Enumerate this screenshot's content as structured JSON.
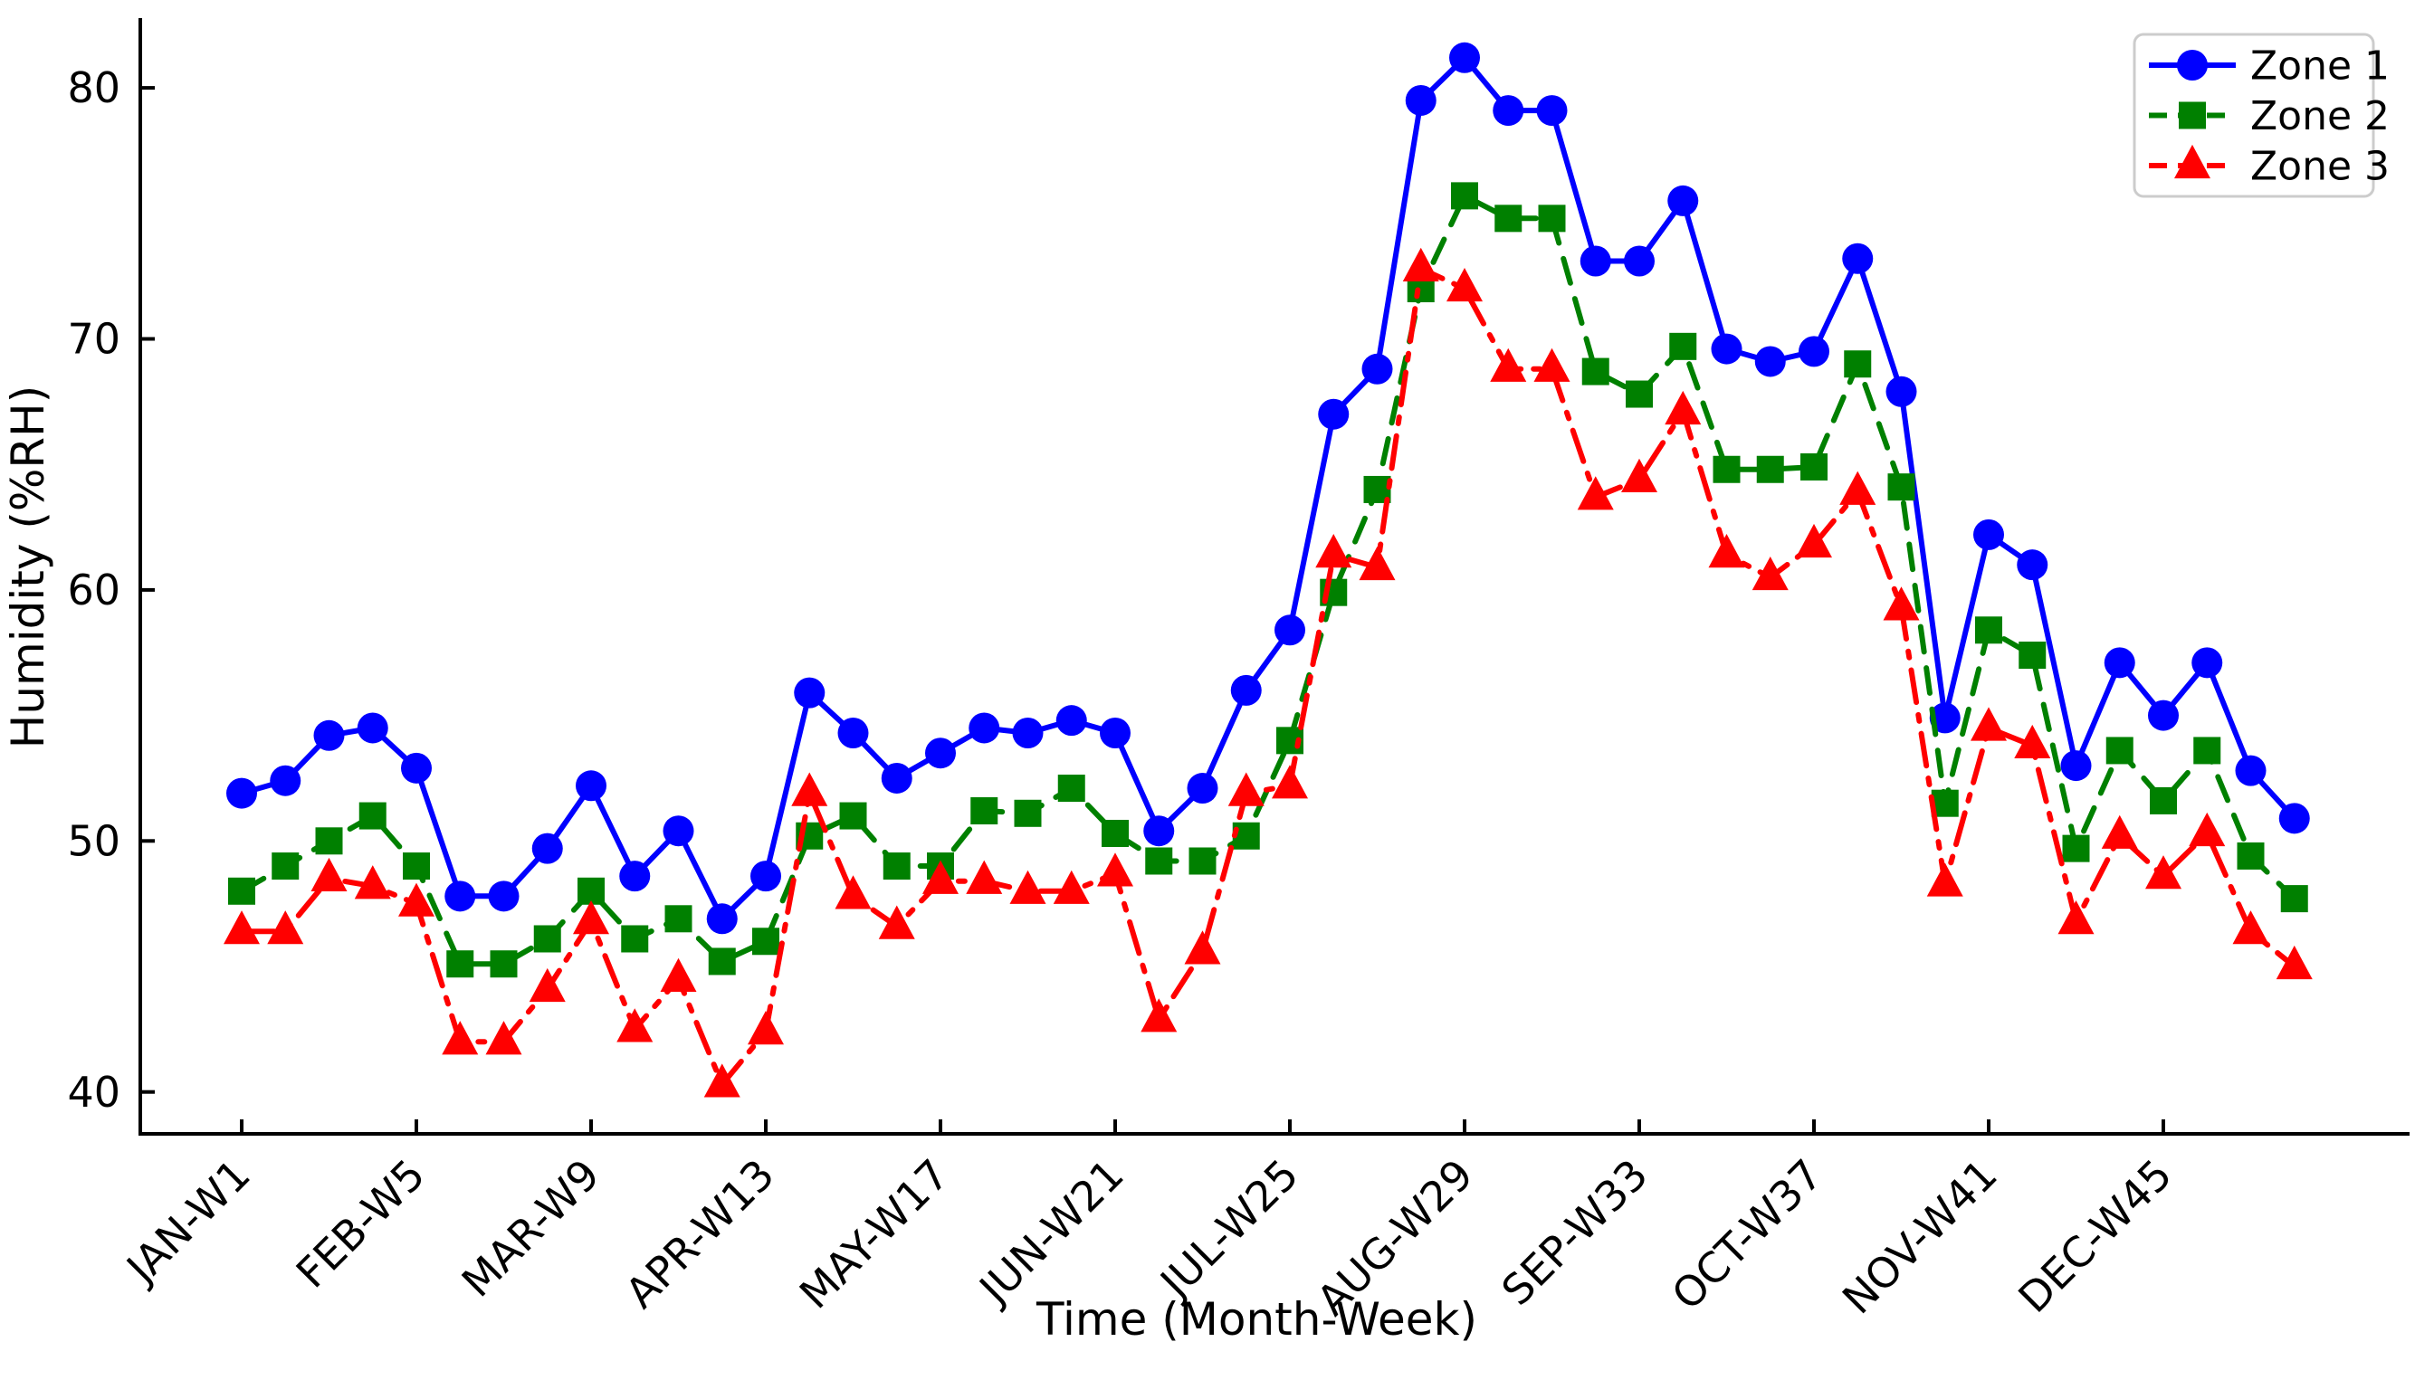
{
  "chart_data": {
    "type": "line",
    "title": "",
    "xlabel": "Time (Month-Week)",
    "ylabel": "Humidity (%RH)",
    "x_unit": "week-of-year",
    "weeks": 48,
    "x_tick_weeks": [
      1,
      5,
      9,
      13,
      17,
      21,
      25,
      29,
      33,
      37,
      41,
      45
    ],
    "x_tick_labels": [
      "JAN-W1",
      "FEB-W5",
      "MAR-W9",
      "APR-W13",
      "MAY-W17",
      "JUN-W21",
      "JUL-W25",
      "AUG-W29",
      "SEP-W33",
      "OCT-W37",
      "NOV-W41",
      "DEC-W45"
    ],
    "y_ticks": [
      40,
      50,
      60,
      70,
      80
    ],
    "ylim": [
      38.3,
      82.6
    ],
    "grid": false,
    "legend_position": "upper right",
    "legend_labels": [
      "Zone 1",
      "Zone 2",
      "Zone 3"
    ],
    "series": [
      {
        "name": "Zone 1",
        "color": "#0000ff",
        "line_style": "solid",
        "marker": "circle",
        "values": [
          51.9,
          52.4,
          54.2,
          54.5,
          52.9,
          47.8,
          47.8,
          49.7,
          52.2,
          48.6,
          50.4,
          46.9,
          48.6,
          55.9,
          54.3,
          52.5,
          53.5,
          54.5,
          54.3,
          54.8,
          54.3,
          50.4,
          52.1,
          56.0,
          58.4,
          67.0,
          68.8,
          79.5,
          81.2,
          79.1,
          79.1,
          73.1,
          73.1,
          75.5,
          69.6,
          69.1,
          69.5,
          73.2,
          67.9,
          54.9,
          62.2,
          61.0,
          53.0,
          57.1,
          55.0,
          57.1,
          52.8,
          50.9
        ]
      },
      {
        "name": "Zone 2",
        "color": "#008000",
        "line_style": "dashed",
        "marker": "square",
        "values": [
          48.0,
          49.0,
          50.0,
          51.0,
          49.0,
          45.1,
          45.1,
          46.1,
          48.0,
          46.1,
          46.9,
          45.2,
          46.0,
          50.2,
          51.0,
          49.0,
          49.0,
          51.2,
          51.1,
          52.1,
          50.3,
          49.2,
          49.2,
          50.2,
          54.0,
          59.9,
          64.0,
          72.0,
          75.7,
          74.8,
          74.8,
          68.7,
          67.8,
          69.7,
          64.8,
          64.8,
          64.9,
          69.0,
          64.1,
          51.5,
          58.4,
          57.4,
          49.7,
          53.6,
          51.6,
          53.6,
          49.4,
          47.7
        ]
      },
      {
        "name": "Zone 3",
        "color": "#ff0000",
        "line_style": "dashdot",
        "marker": "triangle-up",
        "values": [
          46.4,
          46.4,
          48.5,
          48.2,
          47.5,
          42.0,
          42.0,
          44.1,
          46.8,
          42.5,
          44.5,
          40.3,
          42.4,
          51.9,
          47.8,
          46.6,
          48.4,
          48.4,
          48.0,
          48.0,
          48.7,
          42.9,
          45.6,
          51.9,
          52.2,
          61.4,
          60.9,
          72.8,
          72.0,
          68.8,
          68.8,
          63.7,
          64.4,
          67.1,
          61.4,
          60.5,
          61.8,
          63.9,
          59.3,
          48.3,
          54.5,
          53.8,
          46.8,
          50.2,
          48.6,
          50.3,
          46.4,
          45.0
        ]
      }
    ]
  }
}
